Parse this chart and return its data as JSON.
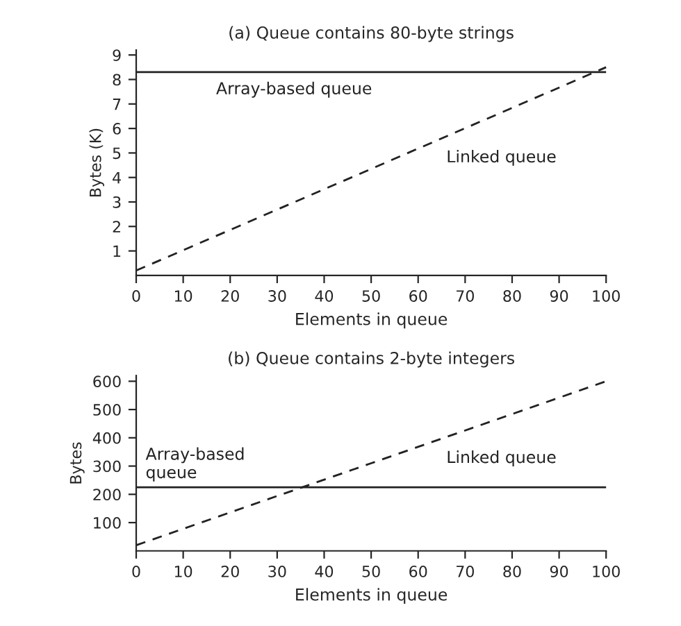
{
  "chart_data": [
    {
      "type": "line",
      "title": "(a) Queue contains 80-byte strings",
      "xlabel": "Elements in queue",
      "ylabel": "Bytes (K)",
      "series": [
        {
          "name": "Linked queue",
          "color": "#222222",
          "line_style": "dashed",
          "x": [
            0,
            50,
            100
          ],
          "values": [
            0.2,
            4.35,
            8.5
          ]
        }
      ],
      "ref_lines": [
        {
          "axis": "y",
          "value": 8.3,
          "label": "Array-based queue",
          "color": "#222222",
          "line_style": "solid"
        }
      ],
      "xlim": [
        0,
        100
      ],
      "ylim": [
        0,
        9.2
      ],
      "xticks": [
        0,
        10,
        20,
        30,
        40,
        50,
        60,
        70,
        80,
        90,
        100
      ],
      "yticks": [
        1,
        2,
        3,
        4,
        5,
        6,
        7,
        8,
        9
      ],
      "grid": false
    },
    {
      "type": "line",
      "title": "(b) Queue contains 2-byte integers",
      "xlabel": "Elements in queue",
      "ylabel": "Bytes",
      "series": [
        {
          "name": "Linked queue",
          "color": "#222222",
          "line_style": "dashed",
          "x": [
            0,
            50,
            100
          ],
          "values": [
            20,
            310,
            600
          ]
        }
      ],
      "ref_lines": [
        {
          "axis": "y",
          "value": 225,
          "label": "Array-based\nqueue",
          "color": "#222222",
          "line_style": "solid"
        }
      ],
      "xlim": [
        0,
        100
      ],
      "ylim": [
        0,
        620
      ],
      "xticks": [
        0,
        10,
        20,
        30,
        40,
        50,
        60,
        70,
        80,
        90,
        100
      ],
      "yticks": [
        100,
        200,
        300,
        400,
        500,
        600
      ],
      "grid": false
    }
  ]
}
